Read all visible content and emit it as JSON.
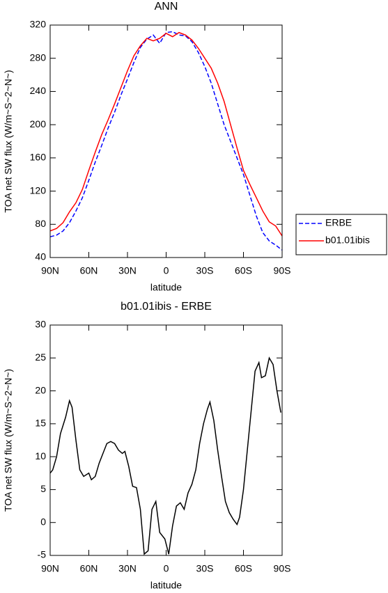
{
  "chart_data": [
    {
      "type": "line",
      "title": "ANN",
      "xlabel": "latitude",
      "ylabel": "TOA net SW flux (W/m~S~2~N~)",
      "x": [
        90,
        85,
        80,
        75,
        70,
        65,
        60,
        55,
        50,
        45,
        40,
        35,
        30,
        25,
        20,
        15,
        10,
        5,
        0,
        -5,
        -10,
        -15,
        -20,
        -25,
        -30,
        -35,
        -40,
        -45,
        -50,
        -55,
        -60,
        -65,
        -70,
        -75,
        -80,
        -85,
        -90
      ],
      "series": [
        {
          "name": "ERBE",
          "color": "#0000ff",
          "linestyle": "dashed",
          "values": [
            65,
            67,
            72,
            82,
            96,
            112,
            133,
            155,
            175,
            196,
            215,
            236,
            255,
            275,
            293,
            303,
            308,
            298,
            311,
            312,
            308,
            307,
            300,
            287,
            270,
            250,
            225,
            200,
            180,
            160,
            140,
            115,
            90,
            70,
            60,
            55,
            49
          ]
        },
        {
          "name": "b01.01ibis",
          "color": "#ff0000",
          "linestyle": "solid",
          "values": [
            72,
            75,
            82,
            95,
            106,
            122,
            145,
            167,
            188,
            206,
            225,
            245,
            265,
            283,
            295,
            304,
            301,
            304,
            310,
            306,
            311,
            308,
            302,
            292,
            280,
            268,
            250,
            228,
            200,
            172,
            145,
            128,
            112,
            96,
            83,
            78,
            66
          ]
        }
      ],
      "xlim": [
        90,
        -90
      ],
      "xticks": [
        {
          "value": 90,
          "label": "90N"
        },
        {
          "value": 60,
          "label": "60N"
        },
        {
          "value": 30,
          "label": "30N"
        },
        0,
        {
          "value": -30,
          "label": "30S"
        },
        {
          "value": -60,
          "label": "60S"
        },
        {
          "value": -90,
          "label": "90S"
        }
      ],
      "ylim": [
        40,
        320
      ],
      "yticks": [
        40,
        80,
        120,
        160,
        200,
        240,
        280,
        320
      ],
      "legend": "right"
    },
    {
      "type": "line",
      "title": "b01.01ibis - ERBE",
      "xlabel": "latitude",
      "ylabel": "TOA net SW flux (W/m~S~2~N~)",
      "x": [
        90,
        88,
        85,
        82,
        78,
        75,
        73,
        70,
        67,
        64,
        60,
        58,
        55,
        52,
        49,
        46,
        43,
        40,
        37,
        34,
        32,
        29,
        26,
        23,
        20,
        17,
        14,
        11,
        8,
        5,
        1,
        -2,
        -5,
        -8,
        -11,
        -14,
        -17,
        -20,
        -23,
        -26,
        -29,
        -32,
        -34,
        -37,
        -40,
        -43,
        -46,
        -49,
        -52,
        -55,
        -57,
        -60,
        -63,
        -66,
        -69,
        -72,
        -74,
        -77,
        -80,
        -83,
        -86,
        -89
      ],
      "series": [
        {
          "color": "#000000",
          "linestyle": "solid",
          "values": [
            7.5,
            8,
            10,
            13.5,
            16,
            18.5,
            17.5,
            12.5,
            8,
            7,
            7.5,
            6.5,
            7,
            9,
            10.5,
            12,
            12.3,
            12,
            11,
            10.5,
            10.8,
            8.5,
            5.5,
            5.3,
            2,
            -4.8,
            -4.3,
            2,
            3.2,
            -1.5,
            -2.5,
            -4.8,
            -0.5,
            2.5,
            3,
            2,
            4.5,
            5.8,
            8,
            12,
            15,
            17.2,
            18.3,
            15.5,
            11,
            7,
            3.2,
            1.5,
            0.5,
            -0.3,
            0.8,
            5,
            11,
            17,
            23,
            24.3,
            22,
            22.3,
            25,
            24,
            20,
            16.7
          ]
        }
      ],
      "xlim": [
        90,
        -90
      ],
      "xticks": [
        {
          "value": 90,
          "label": "90N"
        },
        {
          "value": 60,
          "label": "60N"
        },
        {
          "value": 30,
          "label": "30N"
        },
        0,
        {
          "value": -30,
          "label": "30S"
        },
        {
          "value": -60,
          "label": "60S"
        },
        {
          "value": -90,
          "label": "90S"
        }
      ],
      "ylim": [
        -5,
        30
      ],
      "yticks": [
        -5,
        0,
        5,
        10,
        15,
        20,
        25,
        30
      ]
    }
  ]
}
